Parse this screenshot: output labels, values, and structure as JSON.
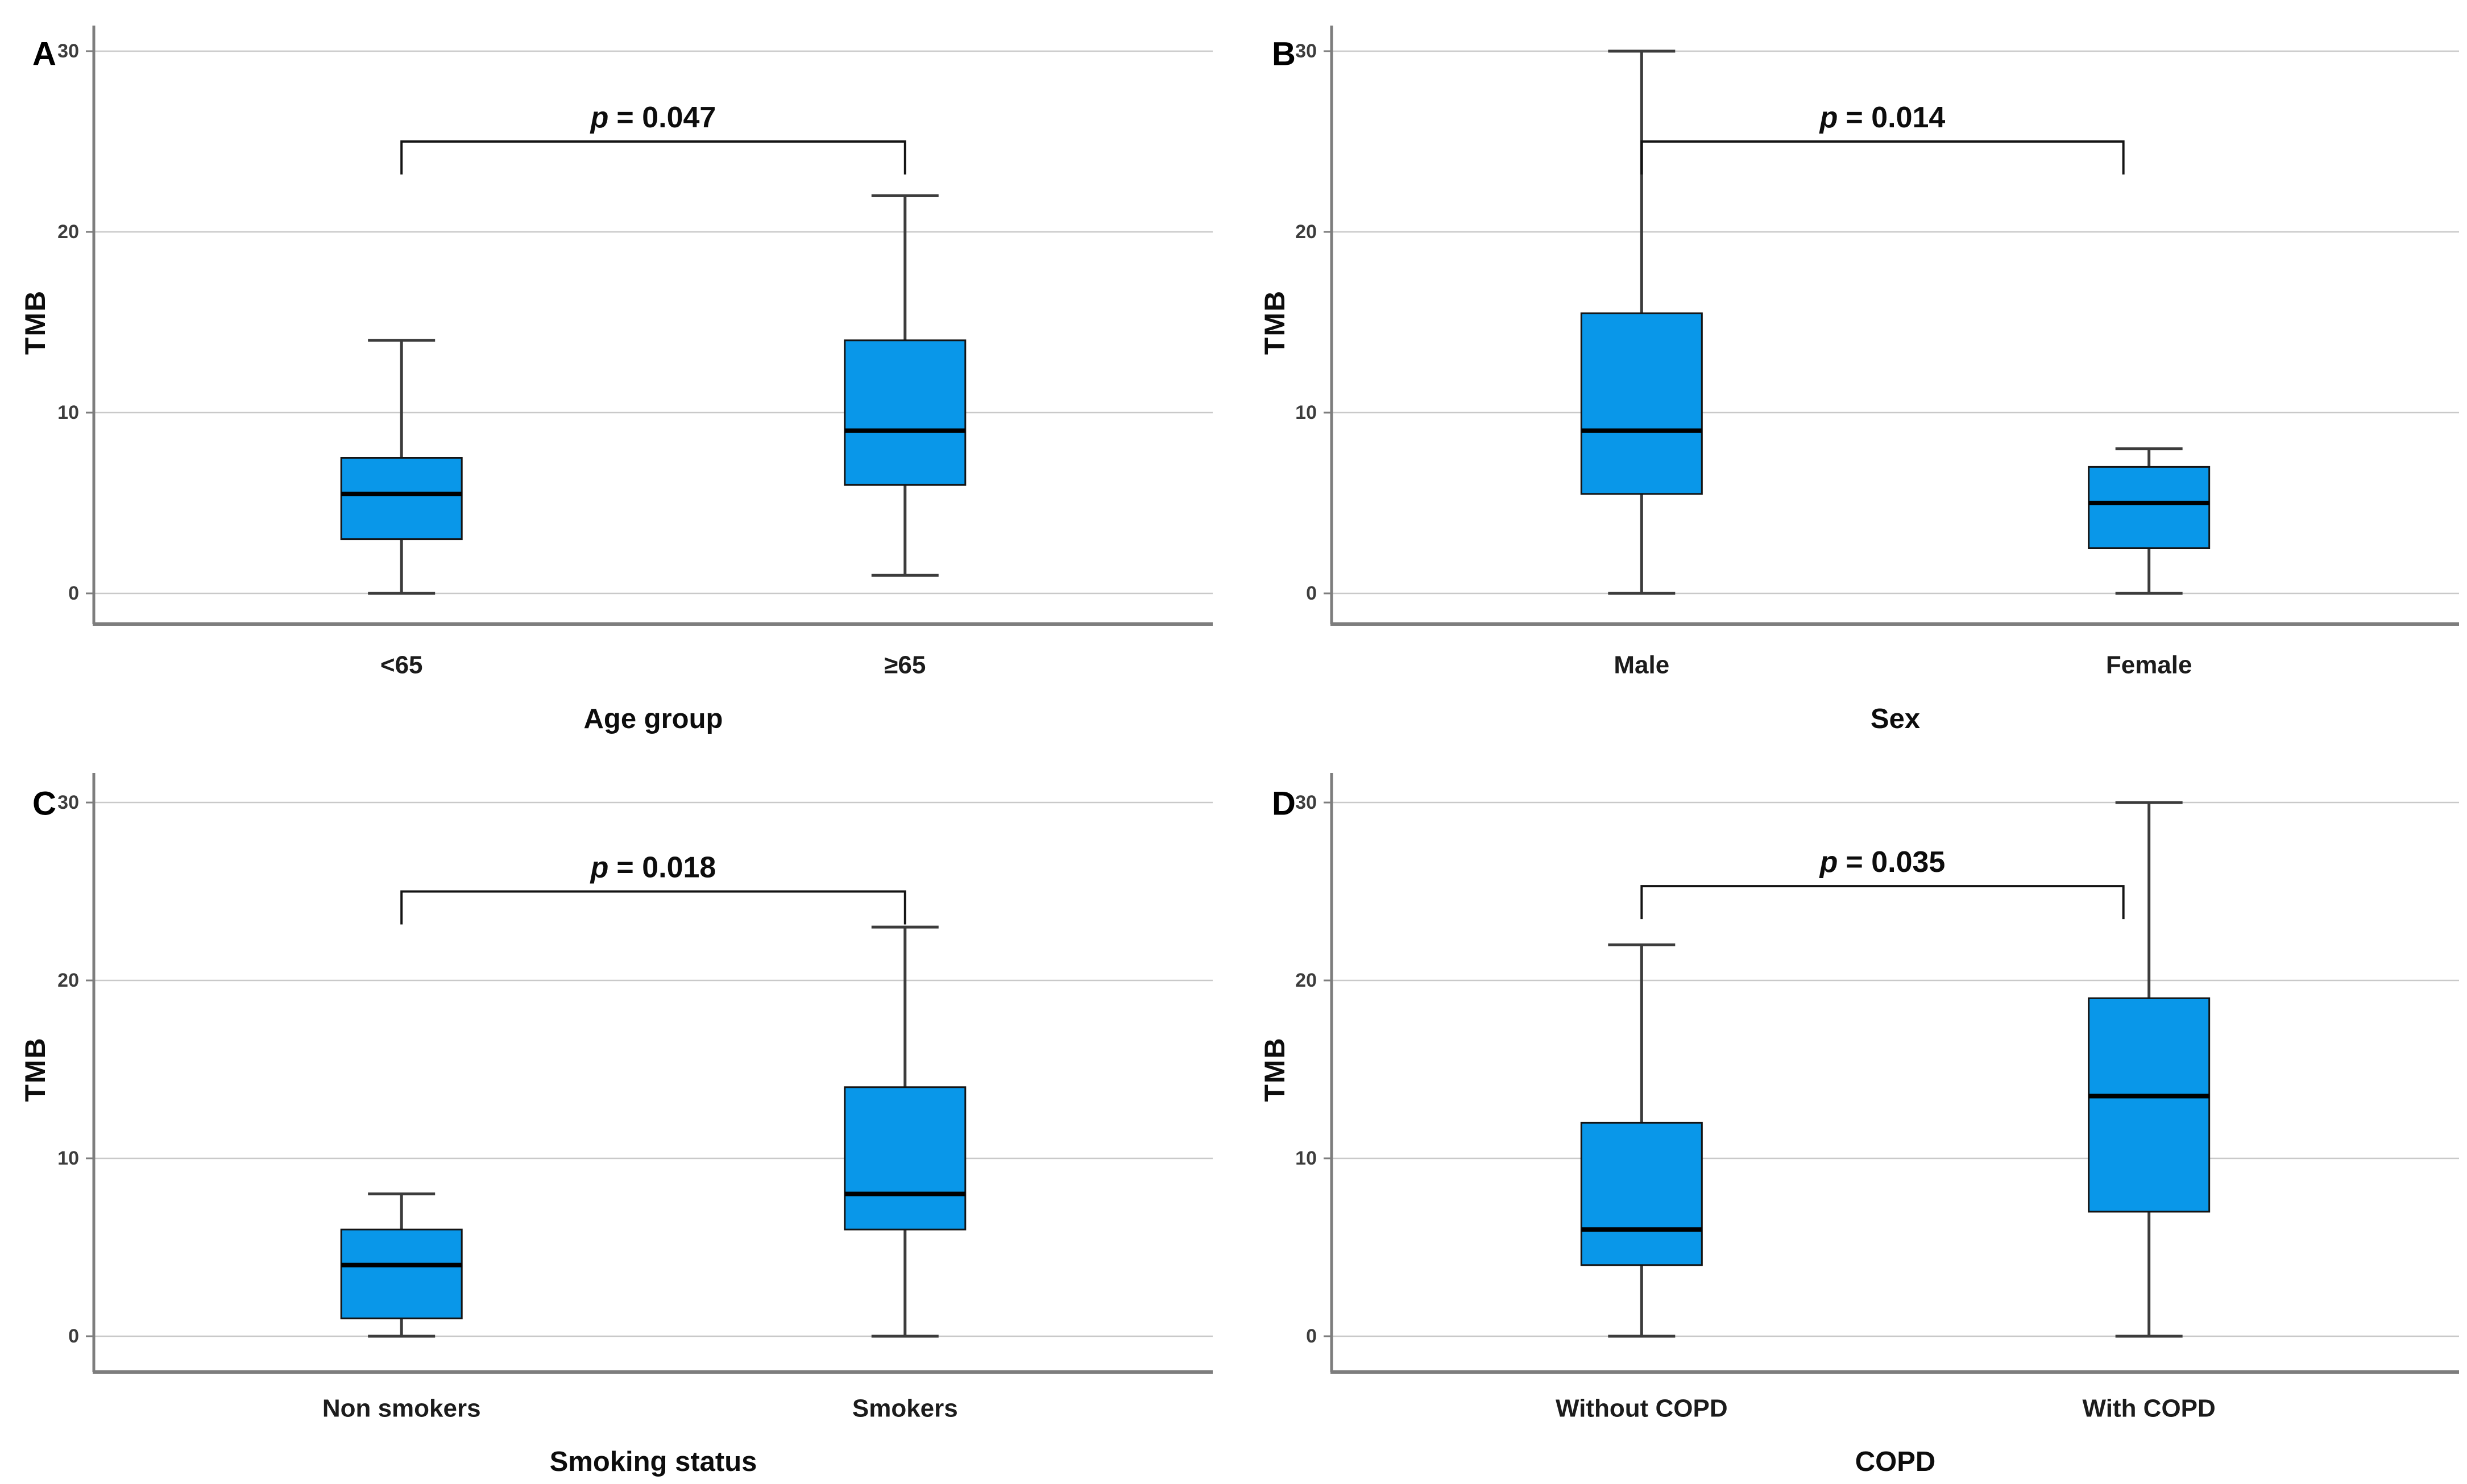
{
  "figure": {
    "ylabel": "TMB",
    "ytick_labels": [
      "0",
      "10",
      "20",
      "30"
    ],
    "box_fill": "#0997e9",
    "background": "#ffffff"
  },
  "chart_data": [
    {
      "type": "box",
      "panel": "A",
      "xlabel": "Age group",
      "ylabel": "TMB",
      "ylim": [
        -1.7,
        31.5
      ],
      "yticks": [
        0,
        10,
        20,
        30
      ],
      "grid": true,
      "p_symbol": "p",
      "p_rest": "= 0.047",
      "bracket_y": 25,
      "categories": [
        "<65",
        "≥65"
      ],
      "series": [
        {
          "name": "<65",
          "min": 0,
          "q1": 3,
          "median": 5.5,
          "q3": 7.5,
          "max": 14
        },
        {
          "name": "≥65",
          "min": 1,
          "q1": 6,
          "median": 9,
          "q3": 14,
          "max": 22
        }
      ]
    },
    {
      "type": "box",
      "panel": "B",
      "xlabel": "Sex",
      "ylabel": "TMB",
      "ylim": [
        -1.7,
        31.5
      ],
      "yticks": [
        0,
        10,
        20,
        30
      ],
      "grid": true,
      "p_symbol": "p",
      "p_rest": "= 0.014",
      "bracket_y": 25,
      "categories": [
        "Male",
        "Female"
      ],
      "series": [
        {
          "name": "Male",
          "min": 0,
          "q1": 5.5,
          "median": 9,
          "q3": 15.5,
          "max": 30
        },
        {
          "name": "Female",
          "min": 0,
          "q1": 2.5,
          "median": 5,
          "q3": 7,
          "max": 8
        }
      ]
    },
    {
      "type": "box",
      "panel": "C",
      "xlabel": "Smoking status",
      "ylabel": "TMB",
      "ylim": [
        -1.7,
        31.5
      ],
      "yticks": [
        0,
        10,
        20,
        30
      ],
      "grid": true,
      "p_symbol": "p",
      "p_rest": "= 0.018",
      "bracket_y": 25,
      "categories": [
        "Non smokers",
        "Smokers"
      ],
      "series": [
        {
          "name": "Non smokers",
          "min": 0,
          "q1": 1,
          "median": 4,
          "q3": 6,
          "max": 8
        },
        {
          "name": "Smokers",
          "min": 0,
          "q1": 6,
          "median": 8,
          "q3": 14,
          "max": 23
        }
      ]
    },
    {
      "type": "box",
      "panel": "D",
      "xlabel": "COPD",
      "ylabel": "TMB",
      "ylim": [
        -1.7,
        31.5
      ],
      "yticks": [
        0,
        10,
        20,
        30
      ],
      "grid": true,
      "p_symbol": "p",
      "p_rest": "= 0.035",
      "bracket_y": 25.3,
      "categories": [
        "Without COPD",
        "With COPD"
      ],
      "series": [
        {
          "name": "Without COPD",
          "min": 0,
          "q1": 4,
          "median": 6,
          "q3": 12,
          "max": 22
        },
        {
          "name": "With COPD",
          "min": 0,
          "q1": 7,
          "median": 13.5,
          "q3": 19,
          "max": 30
        }
      ]
    }
  ]
}
